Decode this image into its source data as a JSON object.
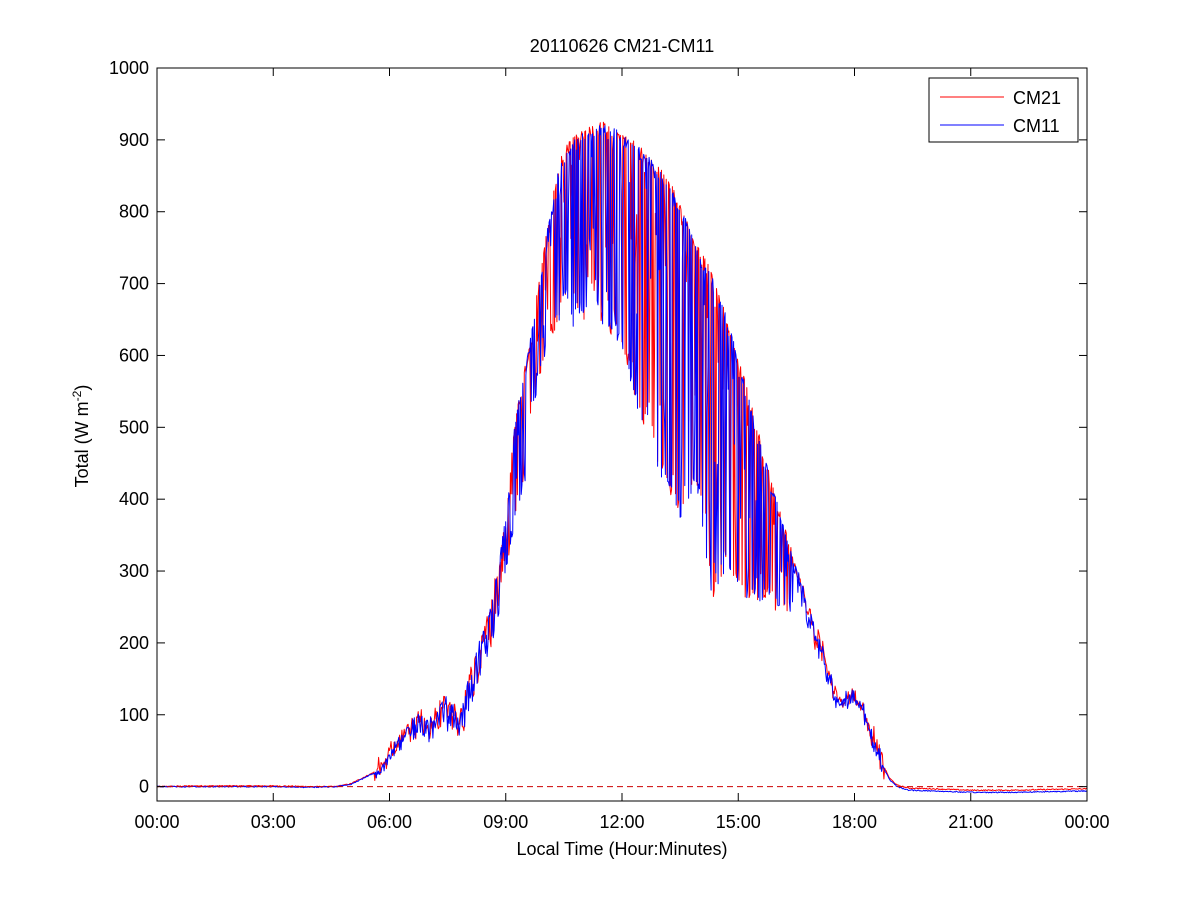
{
  "chart_data": {
    "type": "line",
    "title": "20110626 CM21-CM11",
    "xlabel": "Local Time (Hour:Minutes)",
    "ylabel": "Total (W m",
    "ylabel_sup": "-2",
    "ylabel_close": ")",
    "xlim": [
      0,
      24
    ],
    "ylim": [
      -20,
      1000
    ],
    "x_unit": "hours since 00:00 local time",
    "x_ticks": [
      0,
      3,
      6,
      9,
      12,
      15,
      18,
      21,
      24
    ],
    "x_tick_labels": [
      "00:00",
      "03:00",
      "06:00",
      "09:00",
      "12:00",
      "15:00",
      "18:00",
      "21:00",
      "00:00"
    ],
    "y_ticks": [
      0,
      100,
      200,
      300,
      400,
      500,
      600,
      700,
      800,
      900,
      1000
    ],
    "grid": false,
    "legend_position": "top-right",
    "reference_line": {
      "y": 0,
      "style": "dashed",
      "color": "#cc0000"
    },
    "series": [
      {
        "name": "CM21",
        "color": "#ff0000",
        "x": [
          0,
          1,
          2,
          3,
          4,
          4.6,
          5.0,
          5.3,
          5.6,
          5.9,
          6.2,
          6.5,
          6.8,
          7.0,
          7.2,
          7.4,
          7.6,
          7.8,
          8.0,
          8.2,
          8.4,
          8.6,
          8.8,
          8.9,
          9.0,
          9.1,
          9.25,
          9.4,
          9.55,
          9.7,
          9.85,
          10.0,
          10.15,
          10.3,
          10.45,
          10.6,
          10.75,
          10.9,
          11.05,
          11.2,
          11.35,
          11.5,
          11.65,
          11.8,
          11.95,
          12.1,
          12.25,
          12.4,
          12.55,
          12.7,
          12.85,
          13.0,
          13.15,
          13.3,
          13.45,
          13.6,
          13.75,
          13.9,
          14.05,
          14.2,
          14.35,
          14.5,
          14.65,
          14.8,
          14.95,
          15.1,
          15.25,
          15.4,
          15.55,
          15.7,
          15.85,
          16.0,
          16.15,
          16.3,
          16.45,
          16.6,
          16.75,
          16.9,
          17.05,
          17.2,
          17.35,
          17.5,
          17.65,
          17.8,
          17.95,
          18.1,
          18.3,
          18.5,
          18.7,
          18.9,
          19.1,
          19.4,
          20,
          21,
          22,
          23,
          24
        ],
        "y": [
          0,
          1,
          1,
          1,
          0,
          0,
          4,
          12,
          20,
          40,
          72,
          90,
          110,
          95,
          115,
          130,
          125,
          100,
          150,
          190,
          215,
          260,
          310,
          350,
          380,
          430,
          520,
          560,
          600,
          650,
          700,
          760,
          800,
          850,
          880,
          895,
          905,
          912,
          918,
          922,
          924,
          925,
          924,
          922,
          918,
          912,
          905,
          898,
          890,
          880,
          870,
          860,
          848,
          835,
          820,
          800,
          780,
          760,
          745,
          730,
          710,
          690,
          665,
          640,
          610,
          580,
          550,
          520,
          490,
          460,
          430,
          400,
          370,
          345,
          320,
          295,
          270,
          245,
          220,
          200,
          170,
          140,
          130,
          130,
          140,
          130,
          100,
          65,
          35,
          12,
          2,
          -2,
          -3,
          -5,
          -5,
          -4,
          -3
        ],
        "dips_y": [
          0,
          1,
          1,
          1,
          0,
          0,
          4,
          10,
          16,
          28,
          50,
          60,
          70,
          60,
          70,
          85,
          70,
          55,
          90,
          130,
          150,
          190,
          230,
          280,
          300,
          320,
          380,
          400,
          440,
          520,
          560,
          600,
          620,
          640,
          660,
          680,
          640,
          660,
          640,
          680,
          660,
          640,
          620,
          640,
          600,
          590,
          560,
          520,
          500,
          520,
          460,
          430,
          420,
          400,
          380,
          370,
          400,
          420,
          380,
          300,
          260,
          280,
          300,
          300,
          280,
          260,
          260,
          270,
          250,
          260,
          250,
          240,
          250,
          240,
          260,
          260,
          230,
          200,
          180,
          170,
          120,
          110,
          112,
          115,
          118,
          110,
          90,
          60,
          30,
          10,
          1,
          -2,
          -3,
          -5,
          -5,
          -4,
          -3
        ]
      },
      {
        "name": "CM11",
        "color": "#0000ff",
        "x": [
          0,
          1,
          2,
          3,
          4,
          4.6,
          5.0,
          5.3,
          5.6,
          5.9,
          6.2,
          6.5,
          6.8,
          7.0,
          7.2,
          7.4,
          7.6,
          7.8,
          8.0,
          8.2,
          8.4,
          8.6,
          8.8,
          8.9,
          9.0,
          9.1,
          9.25,
          9.4,
          9.55,
          9.7,
          9.85,
          10.0,
          10.15,
          10.3,
          10.45,
          10.6,
          10.75,
          10.9,
          11.05,
          11.2,
          11.35,
          11.5,
          11.65,
          11.8,
          11.95,
          12.1,
          12.25,
          12.4,
          12.55,
          12.7,
          12.85,
          13.0,
          13.15,
          13.3,
          13.45,
          13.6,
          13.75,
          13.9,
          14.05,
          14.2,
          14.35,
          14.5,
          14.65,
          14.8,
          14.95,
          15.1,
          15.25,
          15.4,
          15.55,
          15.7,
          15.85,
          16.0,
          16.15,
          16.3,
          16.45,
          16.6,
          16.75,
          16.9,
          17.05,
          17.2,
          17.35,
          17.5,
          17.65,
          17.8,
          17.95,
          18.1,
          18.3,
          18.5,
          18.7,
          18.9,
          19.1,
          19.4,
          20,
          21,
          22,
          23,
          24
        ],
        "y": [
          0,
          0,
          0,
          0,
          -1,
          0,
          3,
          11,
          19,
          38,
          70,
          88,
          108,
          93,
          113,
          128,
          122,
          98,
          148,
          188,
          212,
          258,
          306,
          346,
          376,
          426,
          516,
          556,
          596,
          646,
          696,
          756,
          796,
          846,
          876,
          890,
          900,
          908,
          914,
          918,
          920,
          921,
          920,
          918,
          914,
          908,
          901,
          894,
          886,
          876,
          866,
          856,
          844,
          831,
          816,
          796,
          776,
          756,
          741,
          726,
          706,
          686,
          661,
          636,
          606,
          576,
          546,
          516,
          486,
          456,
          426,
          396,
          366,
          341,
          316,
          291,
          266,
          241,
          216,
          196,
          166,
          136,
          126,
          126,
          136,
          126,
          96,
          62,
          32,
          10,
          0,
          -5,
          -6,
          -8,
          -8,
          -7,
          -6
        ],
        "dips_y": [
          0,
          0,
          0,
          0,
          -1,
          0,
          3,
          9,
          15,
          26,
          48,
          58,
          68,
          58,
          68,
          83,
          68,
          53,
          88,
          128,
          148,
          188,
          228,
          278,
          298,
          318,
          378,
          398,
          438,
          518,
          558,
          598,
          618,
          638,
          658,
          678,
          638,
          658,
          638,
          678,
          658,
          638,
          618,
          638,
          598,
          588,
          558,
          518,
          498,
          518,
          458,
          428,
          418,
          398,
          378,
          368,
          398,
          418,
          378,
          298,
          226,
          278,
          298,
          298,
          278,
          258,
          258,
          268,
          248,
          258,
          248,
          238,
          248,
          238,
          258,
          258,
          228,
          198,
          178,
          168,
          118,
          108,
          110,
          113,
          116,
          108,
          88,
          58,
          28,
          8,
          -1,
          -5,
          -6,
          -8,
          -8,
          -7,
          -6
        ]
      }
    ]
  }
}
